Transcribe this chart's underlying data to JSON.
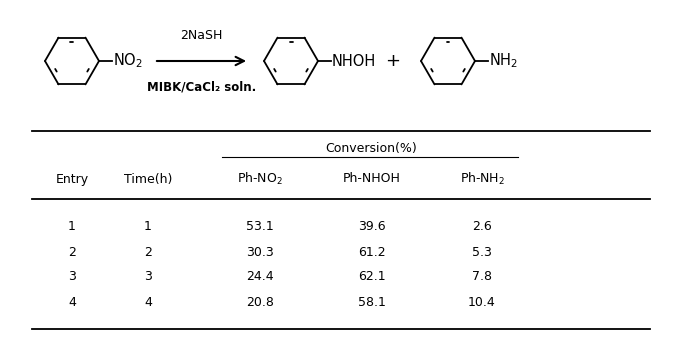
{
  "reaction_above": "2NaSH",
  "reaction_below": "MIBK/CaCl₂ soln.",
  "conversion_header": "Conversion(%)",
  "entries": [
    1,
    2,
    3,
    4
  ],
  "times": [
    1,
    2,
    3,
    4
  ],
  "ph_no2": [
    53.1,
    30.3,
    24.4,
    20.8
  ],
  "ph_nhoh": [
    39.6,
    61.2,
    62.1,
    58.1
  ],
  "ph_nh2": [
    2.6,
    5.3,
    7.8,
    10.4
  ],
  "bg_color": "#ffffff",
  "line_color": "#000000",
  "fig_width": 6.82,
  "fig_height": 3.39,
  "fig_dpi": 100
}
